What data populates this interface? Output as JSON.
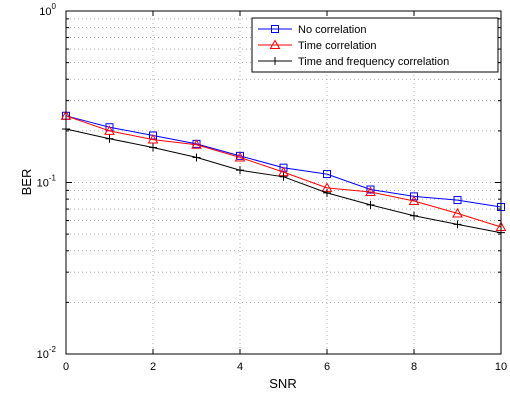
{
  "chart_data": {
    "type": "line",
    "title": "",
    "xlabel": "SNR",
    "ylabel": "BER",
    "xlim": [
      0,
      10
    ],
    "ylim": [
      0.01,
      1
    ],
    "yscale": "log",
    "grid": true,
    "legend_position": "top-right",
    "x": [
      0,
      1,
      2,
      3,
      4,
      5,
      6,
      7,
      8,
      9,
      10
    ],
    "xticks": [
      "0",
      "2",
      "4",
      "6",
      "8",
      "10"
    ],
    "yticks": [
      {
        "base": "10",
        "exp": "-2"
      },
      {
        "base": "10",
        "exp": "-1"
      },
      {
        "base": "10",
        "exp": "0"
      }
    ],
    "series": [
      {
        "name": "No correlation",
        "color": "#0000ff",
        "marker": "square",
        "values": [
          0.245,
          0.21,
          0.188,
          0.168,
          0.143,
          0.122,
          0.112,
          0.091,
          0.083,
          0.079,
          0.072
        ]
      },
      {
        "name": "Time correlation",
        "color": "#ff0000",
        "marker": "triangle",
        "values": [
          0.245,
          0.2,
          0.178,
          0.166,
          0.14,
          0.115,
          0.093,
          0.088,
          0.078,
          0.066,
          0.055
        ]
      },
      {
        "name": "Time and frequency correlation",
        "color": "#000000",
        "marker": "plus",
        "values": [
          0.205,
          0.18,
          0.16,
          0.14,
          0.118,
          0.108,
          0.087,
          0.074,
          0.064,
          0.057,
          0.051
        ]
      }
    ]
  }
}
